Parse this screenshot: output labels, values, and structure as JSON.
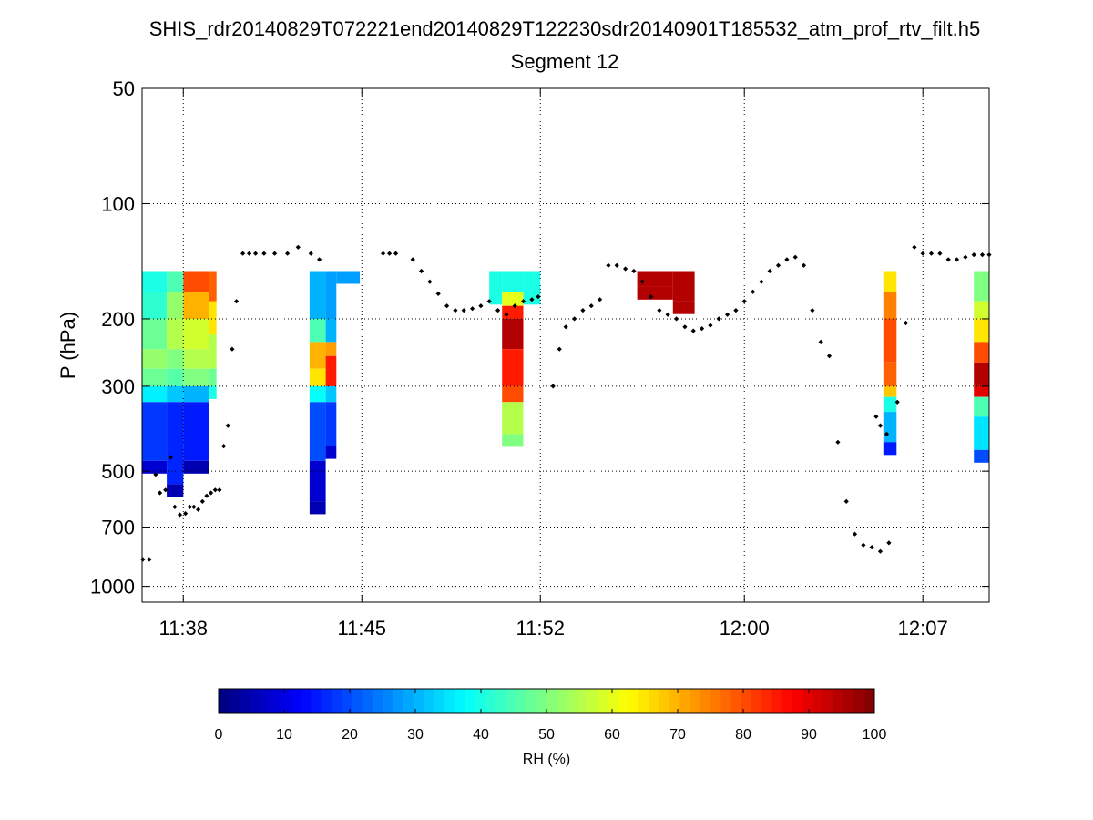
{
  "title": "SHIS_rdr20140829T072221end20140829T122230sdr20140901T185532_atm_prof_rtv_filt.h5",
  "subtitle": "Segment 12",
  "chart_data": {
    "type": "heatmap",
    "ylabel": "P (hPa)",
    "y_scale": "log",
    "y_reversed": true,
    "ylim": [
      50,
      1100
    ],
    "xlim": [
      "11:36:23",
      "12:09:36"
    ],
    "x_ticks": [
      "11:38",
      "11:45",
      "11:52",
      "12:00",
      "12:07"
    ],
    "y_ticks": [
      50,
      100,
      200,
      300,
      500,
      700,
      1000
    ],
    "grid": true,
    "colorbar": {
      "label": "RH (%)",
      "range": [
        0,
        100
      ],
      "ticks": [
        0,
        10,
        20,
        30,
        40,
        50,
        60,
        70,
        80,
        90,
        100
      ],
      "colormap": "jet"
    },
    "rh_profiles": [
      {
        "start": "11:36:23",
        "end": "11:37:21",
        "levels": [
          [
            150,
            40
          ],
          [
            170,
            42
          ],
          [
            200,
            48
          ],
          [
            240,
            52
          ],
          [
            270,
            48
          ],
          [
            300,
            36
          ],
          [
            330,
            18
          ],
          [
            470,
            8
          ]
        ]
      },
      {
        "start": "11:37:21",
        "end": "11:38:00",
        "levels": [
          [
            150,
            45
          ],
          [
            170,
            52
          ],
          [
            200,
            55
          ],
          [
            240,
            50
          ],
          [
            270,
            46
          ],
          [
            300,
            32
          ],
          [
            330,
            16
          ],
          [
            540,
            5
          ]
        ]
      },
      {
        "start": "11:38:00",
        "end": "11:39:00",
        "levels": [
          [
            150,
            80
          ],
          [
            170,
            70
          ],
          [
            200,
            58
          ],
          [
            240,
            55
          ],
          [
            270,
            50
          ],
          [
            300,
            30
          ],
          [
            330,
            15
          ],
          [
            470,
            5
          ]
        ]
      },
      {
        "start": "11:39:00",
        "end": "11:39:18",
        "levels": [
          [
            150,
            78
          ],
          [
            180,
            65
          ],
          [
            220,
            55
          ],
          [
            270,
            48
          ],
          [
            300,
            40
          ]
        ]
      },
      {
        "start": "11:42:57",
        "end": "11:43:35",
        "levels": [
          [
            150,
            30
          ],
          [
            200,
            45
          ],
          [
            230,
            70
          ],
          [
            270,
            65
          ],
          [
            300,
            38
          ],
          [
            330,
            20
          ],
          [
            470,
            8
          ],
          [
            600,
            5
          ]
        ]
      },
      {
        "start": "11:43:35",
        "end": "11:44:00",
        "levels": [
          [
            150,
            28
          ],
          [
            200,
            30
          ],
          [
            230,
            72
          ],
          [
            250,
            85
          ],
          [
            300,
            32
          ],
          [
            330,
            18
          ],
          [
            430,
            8
          ]
        ]
      },
      {
        "start": "11:44:00",
        "end": "11:44:55",
        "levels": [
          [
            150,
            28
          ]
        ]
      },
      {
        "start": "11:50:00",
        "end": "11:50:30",
        "levels": [
          [
            150,
            40
          ],
          [
            170,
            40
          ]
        ]
      },
      {
        "start": "11:50:30",
        "end": "11:51:20",
        "levels": [
          [
            150,
            40
          ],
          [
            170,
            60
          ],
          [
            185,
            85
          ],
          [
            200,
            95
          ],
          [
            240,
            85
          ],
          [
            300,
            80
          ],
          [
            330,
            55
          ],
          [
            400,
            50
          ]
        ]
      },
      {
        "start": "11:51:20",
        "end": "11:52:00",
        "levels": [
          [
            150,
            40
          ],
          [
            170,
            40
          ]
        ]
      },
      {
        "start": "11:55:48",
        "end": "11:57:12",
        "levels": [
          [
            150,
            95
          ],
          [
            165,
            95
          ]
        ]
      },
      {
        "start": "11:57:12",
        "end": "11:58:03",
        "levels": [
          [
            150,
            95
          ],
          [
            180,
            95
          ]
        ]
      },
      {
        "start": "12:05:27",
        "end": "12:05:58",
        "levels": [
          [
            150,
            65
          ],
          [
            170,
            75
          ],
          [
            200,
            80
          ],
          [
            260,
            78
          ],
          [
            300,
            68
          ],
          [
            320,
            40
          ],
          [
            350,
            30
          ],
          [
            420,
            15
          ]
        ]
      },
      {
        "start": "12:09:00",
        "end": "12:09:36",
        "levels": [
          [
            150,
            50
          ],
          [
            180,
            58
          ],
          [
            200,
            65
          ],
          [
            230,
            80
          ],
          [
            260,
            95
          ],
          [
            300,
            90
          ],
          [
            320,
            45
          ],
          [
            360,
            35
          ],
          [
            440,
            20
          ]
        ]
      }
    ],
    "scatter": {
      "marker": "black diamond",
      "points": [
        [
          "11:36:25",
          850
        ],
        [
          "11:36:40",
          850
        ],
        [
          "11:36:55",
          510
        ],
        [
          "11:37:05",
          570
        ],
        [
          "11:37:18",
          560
        ],
        [
          "11:37:30",
          460
        ],
        [
          "11:37:40",
          620
        ],
        [
          "11:37:52",
          650
        ],
        [
          "11:38:05",
          645
        ],
        [
          "11:38:15",
          620
        ],
        [
          "11:38:25",
          620
        ],
        [
          "11:38:35",
          630
        ],
        [
          "11:38:45",
          600
        ],
        [
          "11:38:55",
          580
        ],
        [
          "11:39:05",
          570
        ],
        [
          "11:39:15",
          560
        ],
        [
          "11:39:25",
          560
        ],
        [
          "11:39:35",
          430
        ],
        [
          "11:39:45",
          380
        ],
        [
          "11:39:55",
          240
        ],
        [
          "11:40:05",
          180
        ],
        [
          "11:40:20",
          135
        ],
        [
          "11:40:35",
          135
        ],
        [
          "11:40:50",
          135
        ],
        [
          "11:41:10",
          135
        ],
        [
          "11:41:35",
          135
        ],
        [
          "11:42:05",
          135
        ],
        [
          "11:42:30",
          130
        ],
        [
          "11:43:00",
          135
        ],
        [
          "11:43:20",
          140
        ],
        [
          "11:45:50",
          135
        ],
        [
          "11:46:05",
          135
        ],
        [
          "11:46:20",
          135
        ],
        [
          "11:47:00",
          140
        ],
        [
          "11:47:20",
          150
        ],
        [
          "11:47:40",
          160
        ],
        [
          "11:48:00",
          172
        ],
        [
          "11:48:20",
          185
        ],
        [
          "11:48:40",
          190
        ],
        [
          "11:49:00",
          190
        ],
        [
          "11:49:20",
          188
        ],
        [
          "11:49:40",
          185
        ],
        [
          "11:50:00",
          180
        ],
        [
          "11:50:20",
          190
        ],
        [
          "11:50:40",
          195
        ],
        [
          "11:51:00",
          185
        ],
        [
          "11:51:20",
          180
        ],
        [
          "11:51:40",
          178
        ],
        [
          "11:51:55",
          175
        ],
        [
          "11:52:30",
          300
        ],
        [
          "11:52:45",
          240
        ],
        [
          "11:53:00",
          210
        ],
        [
          "11:53:20",
          200
        ],
        [
          "11:53:40",
          190
        ],
        [
          "11:54:00",
          185
        ],
        [
          "11:54:20",
          178
        ],
        [
          "11:54:40",
          145
        ],
        [
          "11:55:00",
          145
        ],
        [
          "11:55:20",
          148
        ],
        [
          "11:55:40",
          150
        ],
        [
          "11:56:00",
          160
        ],
        [
          "11:56:20",
          175
        ],
        [
          "11:56:40",
          190
        ],
        [
          "11:57:00",
          195
        ],
        [
          "11:57:20",
          200
        ],
        [
          "11:57:40",
          210
        ],
        [
          "11:58:00",
          215
        ],
        [
          "11:58:20",
          212
        ],
        [
          "11:58:40",
          208
        ],
        [
          "11:59:00",
          200
        ],
        [
          "11:59:20",
          195
        ],
        [
          "11:59:40",
          190
        ],
        [
          "12:00:00",
          180
        ],
        [
          "12:00:20",
          170
        ],
        [
          "12:00:40",
          160
        ],
        [
          "12:01:00",
          150
        ],
        [
          "12:01:20",
          145
        ],
        [
          "12:01:40",
          140
        ],
        [
          "12:02:00",
          138
        ],
        [
          "12:02:20",
          145
        ],
        [
          "12:02:40",
          190
        ],
        [
          "12:03:00",
          230
        ],
        [
          "12:03:20",
          250
        ],
        [
          "12:03:40",
          420
        ],
        [
          "12:04:00",
          600
        ],
        [
          "12:04:20",
          730
        ],
        [
          "12:04:40",
          780
        ],
        [
          "12:05:00",
          790
        ],
        [
          "12:05:20",
          810
        ],
        [
          "12:05:40",
          770
        ],
        [
          "12:06:00",
          330
        ],
        [
          "12:06:20",
          205
        ],
        [
          "12:06:40",
          130
        ],
        [
          "12:07:00",
          135
        ],
        [
          "12:07:20",
          135
        ],
        [
          "12:07:40",
          135
        ],
        [
          "12:08:00",
          140
        ],
        [
          "12:08:20",
          140
        ],
        [
          "12:08:40",
          138
        ],
        [
          "12:09:00",
          136
        ],
        [
          "12:09:20",
          136
        ],
        [
          "12:09:36",
          136
        ],
        [
          "12:05:10",
          360
        ],
        [
          "12:05:20",
          380
        ],
        [
          "12:05:35",
          400
        ]
      ]
    }
  }
}
